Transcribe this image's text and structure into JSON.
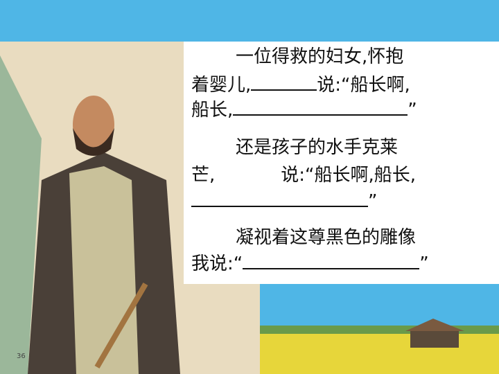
{
  "page_number": "36",
  "paragraphs": [
    {
      "lines": [
        [
          "一位得救的妇女,怀抱"
        ],
        [
          "着婴儿,",
          "说:“船长啊,"
        ],
        [
          "船长,",
          "”"
        ]
      ]
    },
    {
      "lines": [
        [
          "还是孩子的水手克莱"
        ],
        [
          "芒,",
          "说:“船长啊,船长,"
        ],
        [
          "”"
        ]
      ]
    },
    {
      "lines": [
        [
          "凝视着这尊黑色的雕像"
        ],
        [
          "我说:“",
          "”"
        ]
      ]
    }
  ]
}
